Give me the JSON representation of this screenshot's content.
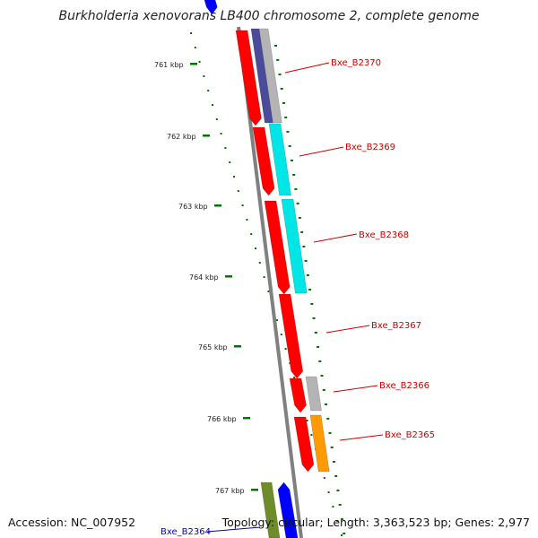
{
  "title": "Burkholderia xenovorans LB400 chromosome 2, complete genome",
  "accession": "Accession: NC_007952",
  "summary": "Topology: circular; Length: 3,363,523 bp; Genes: 2,977",
  "scale_labels": [
    "761 kbp",
    "762 kbp",
    "763 kbp",
    "764 kbp",
    "765 kbp",
    "766 kbp",
    "767 kbp"
  ],
  "colors": {
    "backbone": "#808080",
    "tick": "#007700",
    "cds_forward_red": "#ff0000",
    "label_red": "#cc0000",
    "label_blue": "#0000cc",
    "cyan": "#00e6e6",
    "gray": "#b4b4b4",
    "navy": "#4b4b9b",
    "orange": "#ff9a00",
    "olive": "#6e8c28",
    "blue": "#0000ff"
  },
  "genes": [
    {
      "label": "Bxe_B2370",
      "strand": "reverse",
      "color_key": "navy"
    },
    {
      "label": "Bxe_B2369",
      "strand": "reverse",
      "color_key": "cyan"
    },
    {
      "label": "Bxe_B2368",
      "strand": "reverse",
      "color_key": "cyan"
    },
    {
      "label": "Bxe_B2367",
      "strand": "forward",
      "color_key": "cds_forward_red"
    },
    {
      "label": "Bxe_B2366",
      "strand": "reverse",
      "color_key": "gray"
    },
    {
      "label": "Bxe_B2365",
      "strand": "reverse",
      "color_key": "orange"
    },
    {
      "label": "Bxe_B2364",
      "strand": "forward",
      "color_key": "olive"
    }
  ]
}
